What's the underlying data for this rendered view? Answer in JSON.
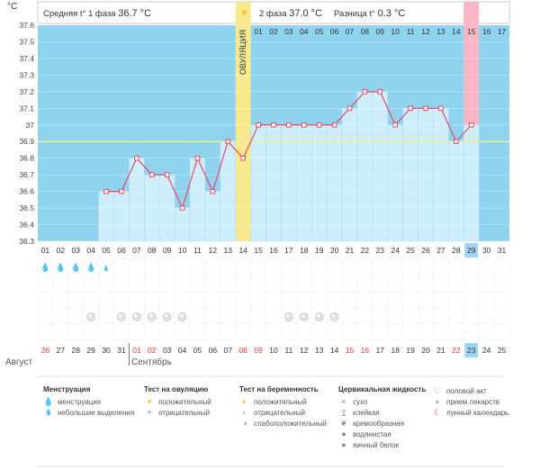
{
  "header": {
    "unit": "°C",
    "phase1_label": "Средняя t° 1 фаза",
    "phase1_value": "36.7 °C",
    "phase2_label": "2 фаза",
    "phase2_value": "37.0 °C",
    "diff_label": "Разница t°",
    "diff_value": "0.3 °C"
  },
  "ovulation_label": "ОВУЛЯЦИЯ",
  "months": {
    "august": "Август",
    "september": "Сентябрь"
  },
  "colors": {
    "sky": "#8fd3ef",
    "bar": "#cfeefc",
    "line": "#e84a66",
    "ovulation": "#f7e98e",
    "menstruation": "#e8356b",
    "highlight_day": "#f8b6c6",
    "coverline": "#f0ee9a",
    "today": "#9fd5f2"
  },
  "chart_data": {
    "type": "line",
    "ylim": [
      36.3,
      37.6
    ],
    "y_ticks": [
      "36.3",
      "36.4",
      "36.5",
      "36.6",
      "36.7",
      "36.8",
      "36.9",
      "37",
      "37.1",
      "37.2",
      "37.3",
      "37.4",
      "37.5",
      "37.6"
    ],
    "cycle_days": [
      "01",
      "02",
      "03",
      "04",
      "05",
      "06",
      "07",
      "08",
      "09",
      "10",
      "11",
      "12",
      "13",
      "14",
      "15",
      "16",
      "17",
      "18",
      "19",
      "20",
      "21",
      "22",
      "23",
      "24",
      "25",
      "26",
      "27",
      "28",
      "29",
      "30",
      "31"
    ],
    "phase2_day_labels": [
      "01",
      "02",
      "03",
      "04",
      "05",
      "06",
      "07",
      "08",
      "09",
      "10",
      "11",
      "12",
      "13",
      "14",
      "15",
      "16",
      "17"
    ],
    "calendar_days": [
      "26",
      "27",
      "28",
      "29",
      "30",
      "31",
      "01",
      "02",
      "03",
      "04",
      "05",
      "06",
      "07",
      "08",
      "09",
      "10",
      "11",
      "12",
      "13",
      "14",
      "15",
      "16",
      "17",
      "18",
      "19",
      "20",
      "21",
      "22",
      "23",
      "24",
      "25"
    ],
    "weekend_days": [
      0,
      6,
      7,
      13,
      14,
      20,
      21,
      27
    ],
    "series": [
      {
        "values": [
          null,
          null,
          null,
          null,
          36.6,
          36.6,
          36.8,
          36.7,
          36.7,
          36.5,
          36.8,
          36.6,
          36.9,
          36.8,
          37.0,
          37.0,
          37.0,
          37.0,
          37.0,
          37.0,
          37.1,
          37.2,
          37.2,
          37.0,
          37.1,
          37.1,
          37.1,
          36.9,
          37.0,
          null,
          null
        ]
      }
    ],
    "coverline": 36.9,
    "ovulation_day": 14,
    "highlight_day": 29,
    "menstruation": [
      2,
      2,
      2,
      2,
      1,
      0,
      0,
      0,
      0,
      0,
      0,
      0,
      0,
      0,
      0,
      0,
      0,
      0,
      0,
      0,
      0,
      0,
      0,
      0,
      0,
      0,
      0,
      0,
      0,
      0,
      0
    ],
    "pills": [
      0,
      0,
      0,
      1,
      0,
      1,
      1,
      1,
      1,
      1,
      0,
      0,
      0,
      0,
      0,
      0,
      1,
      1,
      1,
      1,
      0,
      0,
      0,
      0,
      0,
      0,
      0,
      0,
      0,
      0,
      0
    ]
  },
  "legend": {
    "col1": {
      "title": "Менструация",
      "items": [
        "менструация",
        "небольшие выделения"
      ]
    },
    "col2": {
      "title": "Тест на овуляцию",
      "items": [
        "положительный",
        "отрицательный"
      ]
    },
    "col3": {
      "title": "Тест на беременность",
      "items": [
        "положительный",
        "отрицательный",
        "слабоположительный"
      ]
    },
    "col4": {
      "title": "Цервикальная жидкость",
      "items": [
        "сухо",
        "клейкая",
        "кремообразная",
        "водянистая",
        "яичный белок"
      ]
    },
    "col5": {
      "items": [
        "половой акт",
        "прием лекарств",
        "лунный календарь"
      ]
    }
  }
}
